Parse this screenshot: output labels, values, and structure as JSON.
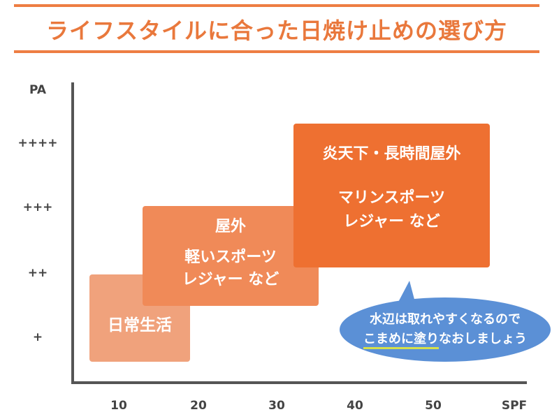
{
  "title": "ライフスタイルに合った日焼け止めの選び方",
  "colors": {
    "accent": "#ee7e43",
    "box_daily": "#f0a27c",
    "box_outdoor": "#f08a58",
    "box_extreme": "#ee7031",
    "bubble": "#5b90d6",
    "underline": "#d6e04a",
    "axis": "#555555"
  },
  "chart_data": {
    "type": "diagram",
    "y_axis": {
      "title": "PA",
      "ticks": [
        "++++",
        "+++",
        "++",
        "+"
      ]
    },
    "x_axis": {
      "title": "SPF",
      "ticks": [
        "10",
        "20",
        "30",
        "40",
        "50"
      ]
    },
    "boxes": [
      {
        "id": "daily",
        "lines": [
          "日常生活"
        ]
      },
      {
        "id": "outdoor",
        "title": "屋外",
        "lines": [
          "軽いスポーツ",
          "レジャー など"
        ]
      },
      {
        "id": "extreme",
        "title": "炎天下・長時間屋外",
        "lines": [
          "マリンスポーツ",
          "レジャー など"
        ]
      }
    ],
    "callout": {
      "line1": "水辺は取れやすくなるので",
      "line2_highlight": "こまめに塗り",
      "line2_rest": "なおしましょう"
    }
  }
}
